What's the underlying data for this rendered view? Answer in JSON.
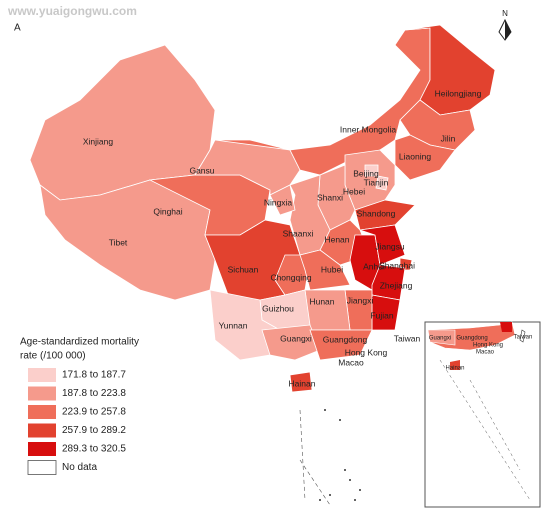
{
  "watermark": "www.yuaigongwu.com",
  "panel_label": "A",
  "north_label": "N",
  "legend": {
    "title_line1": "Age-standardized mortality",
    "title_line2": "rate (/100 000)",
    "classes": [
      {
        "label": "171.8 to 187.7",
        "color": "#fbcfcb"
      },
      {
        "label": "187.8 to 223.8",
        "color": "#f59a8c"
      },
      {
        "label": "223.9 to 257.8",
        "color": "#ef6e5a"
      },
      {
        "label": "257.9 to 289.2",
        "color": "#e2422f"
      },
      {
        "label": "289.3 to 320.5",
        "color": "#d70e0e"
      },
      {
        "label": "No data",
        "color": "#ffffff"
      }
    ]
  },
  "provinces": [
    {
      "name": "Xinjiang",
      "class": 1
    },
    {
      "name": "Tibet",
      "class": 1
    },
    {
      "name": "Qinghai",
      "class": 2
    },
    {
      "name": "Gansu",
      "class": 1
    },
    {
      "name": "Inner Mongolia",
      "class": 2
    },
    {
      "name": "Heilongjiang",
      "class": 3
    },
    {
      "name": "Jilin",
      "class": 2
    },
    {
      "name": "Liaoning",
      "class": 2
    },
    {
      "name": "Hebei",
      "class": 1
    },
    {
      "name": "Beijing",
      "class": 0
    },
    {
      "name": "Tianjin",
      "class": 0
    },
    {
      "name": "Shanxi",
      "class": 1
    },
    {
      "name": "Shandong",
      "class": 3
    },
    {
      "name": "Henan",
      "class": 2
    },
    {
      "name": "Shaanxi",
      "class": 1
    },
    {
      "name": "Ningxia",
      "class": 1
    },
    {
      "name": "Sichuan",
      "class": 3
    },
    {
      "name": "Chongqing",
      "class": 2
    },
    {
      "name": "Hubei",
      "class": 2
    },
    {
      "name": "Anhui",
      "class": 4
    },
    {
      "name": "Jiangsu",
      "class": 4
    },
    {
      "name": "Shanghai",
      "class": 3
    },
    {
      "name": "Zhejiang",
      "class": 4
    },
    {
      "name": "Fujian",
      "class": 4
    },
    {
      "name": "Jiangxi",
      "class": 2
    },
    {
      "name": "Hunan",
      "class": 1
    },
    {
      "name": "Guizhou",
      "class": 0
    },
    {
      "name": "Yunnan",
      "class": 0
    },
    {
      "name": "Guangxi",
      "class": 1
    },
    {
      "name": "Guangdong",
      "class": 2
    },
    {
      "name": "Hainan",
      "class": 3
    },
    {
      "name": "Taiwan",
      "class": 5
    },
    {
      "name": "Hong Kong",
      "class": 5
    },
    {
      "name": "Macao",
      "class": 5
    }
  ],
  "inset_labels": [
    "Guangxi",
    "Guangdong",
    "Hong Kong",
    "Macao",
    "Taiwan",
    "Hainan"
  ]
}
